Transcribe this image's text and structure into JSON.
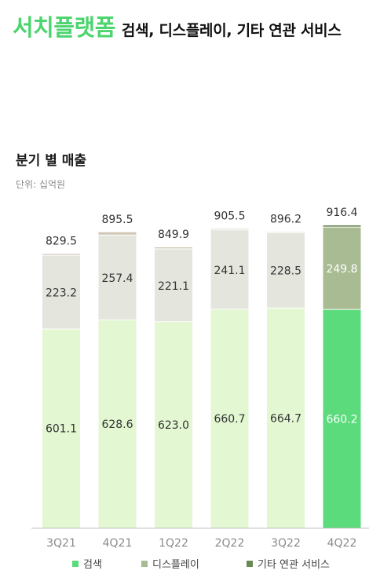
{
  "header": {
    "title_main": "서치플랫폼",
    "title_sub": "검색, 디스플레이, 기타 연관 서비스"
  },
  "section": {
    "title": "분기 별 매출",
    "unit": "단위: 십억원"
  },
  "colors": {
    "search_past": "#e3f7d3",
    "search_latest": "#5bdb7c",
    "display_past": "#e4e6dd",
    "display_latest": "#a8bb92",
    "other_past": "#cfc6b4",
    "other_latest": "#6a8a55",
    "label_dark": "#333333",
    "label_light": "#ffffff"
  },
  "chart_data": {
    "type": "bar",
    "stacked": true,
    "categories": [
      "3Q21",
      "4Q21",
      "1Q22",
      "2Q22",
      "3Q22",
      "4Q22"
    ],
    "series": [
      {
        "name": "검색",
        "values": [
          601.1,
          628.6,
          623.0,
          660.7,
          664.7,
          660.2
        ]
      },
      {
        "name": "디스플레이",
        "values": [
          223.2,
          257.4,
          221.1,
          241.1,
          228.5,
          249.8
        ]
      },
      {
        "name": "기타 연관 서비스",
        "values": [
          5.2,
          9.5,
          5.8,
          3.7,
          3.0,
          6.4
        ]
      }
    ],
    "totals": [
      829.5,
      895.5,
      849.9,
      905.5,
      896.2,
      916.4
    ],
    "value_labels": {
      "검색": [
        "601.1",
        "628.6",
        "623.0",
        "660.7",
        "664.7",
        "660.2"
      ],
      "디스플레이": [
        "223.2",
        "257.4",
        "221.1",
        "241.1",
        "228.5",
        "249.8"
      ],
      "totals": [
        "829.5",
        "895.5",
        "849.9",
        "905.5",
        "896.2",
        "916.4"
      ]
    },
    "highlighted_category": "4Q22",
    "ylim": [
      0,
      916.4
    ],
    "grid": false,
    "legend_position": "bottom"
  }
}
